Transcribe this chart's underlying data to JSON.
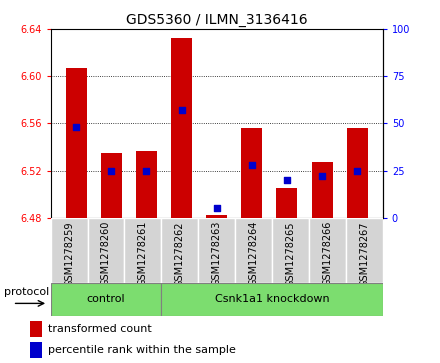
{
  "title": "GDS5360 / ILMN_3136416",
  "samples": [
    "GSM1278259",
    "GSM1278260",
    "GSM1278261",
    "GSM1278262",
    "GSM1278263",
    "GSM1278264",
    "GSM1278265",
    "GSM1278266",
    "GSM1278267"
  ],
  "transformed_count": [
    6.607,
    6.535,
    6.537,
    6.632,
    6.482,
    6.556,
    6.505,
    6.527,
    6.556
  ],
  "percentile_rank": [
    48,
    25,
    25,
    57,
    5,
    28,
    20,
    22,
    25
  ],
  "bar_bottom": 6.48,
  "ylim_left": [
    6.48,
    6.64
  ],
  "ylim_right": [
    0,
    100
  ],
  "yticks_left": [
    6.48,
    6.52,
    6.56,
    6.6,
    6.64
  ],
  "yticks_right": [
    0,
    25,
    50,
    75,
    100
  ],
  "bar_color": "#cc0000",
  "dot_color": "#0000cc",
  "groups": [
    {
      "label": "control",
      "start": 0,
      "end": 3
    },
    {
      "label": "Csnk1a1 knockdown",
      "start": 3,
      "end": 9
    }
  ],
  "group_color": "#7cdd6f",
  "protocol_label": "protocol",
  "ticklabel_bg": "#d4d4d4",
  "plot_bg_color": "#ffffff",
  "fig_bg_color": "#ffffff",
  "bar_width": 0.6,
  "title_fontsize": 10,
  "tick_fontsize": 7,
  "label_fontsize": 8
}
